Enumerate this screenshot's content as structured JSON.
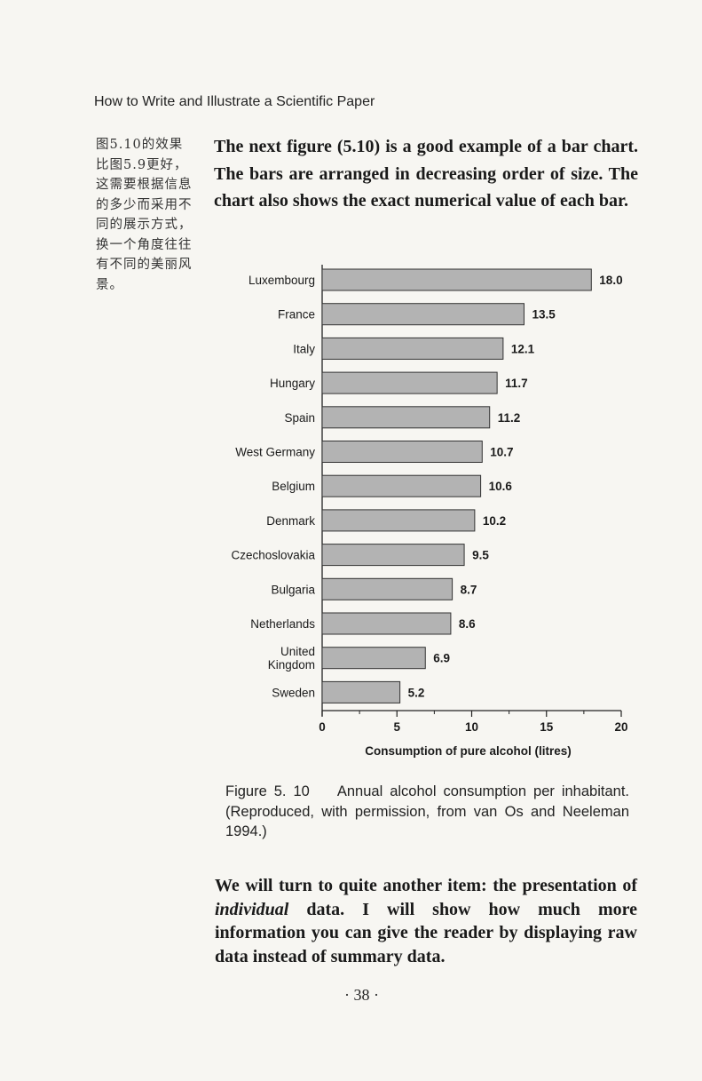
{
  "running_head": "How to Write and Illustrate a Scientific Paper",
  "margin_note": "图5.10的效果比图5.9更好，这需要根据信息的多少而采用不同的展示方式，换一个角度往往有不同的美丽风景。",
  "intro_paragraph": "The next figure (5.10) is a good example of a bar chart. The bars are arranged in decreasing order of size. The chart also shows the exact numerical value of each bar.",
  "caption": {
    "label": "Figure 5. 10",
    "text": "Annual alcohol consumption per inhabitant. (Reproduced, with permission, from van Os and Neeleman 1994.)"
  },
  "outro_paragraph": {
    "before": "We will turn to quite another item: the presentation of ",
    "emphasis": "individual",
    "after": " data. I will show how much more information you can give the reader by displaying raw data instead of summary data."
  },
  "page_number": "· 38 ·",
  "chart_data": {
    "type": "bar",
    "orientation": "horizontal",
    "categories": [
      "Luxembourg",
      "France",
      "Italy",
      "Hungary",
      "Spain",
      "West Germany",
      "Belgium",
      "Denmark",
      "Czechoslovakia",
      "Bulgaria",
      "Netherlands",
      "United Kingdom",
      "Sweden"
    ],
    "values": [
      18.0,
      13.5,
      12.1,
      11.7,
      11.2,
      10.7,
      10.6,
      10.2,
      9.5,
      8.7,
      8.6,
      6.9,
      5.2
    ],
    "value_labels": [
      "18.0",
      "13.5",
      "12.1",
      "11.7",
      "11.2",
      "10.7",
      "10.6",
      "10.2",
      "9.5",
      "8.7",
      "8.6",
      "6.9",
      "5.2"
    ],
    "xlabel": "Consumption of pure alcohol (litres)",
    "xlim": [
      0,
      20
    ],
    "xticks": [
      0,
      5,
      10,
      15,
      20
    ],
    "grid": false,
    "bar_color": "#b3b3b3"
  }
}
